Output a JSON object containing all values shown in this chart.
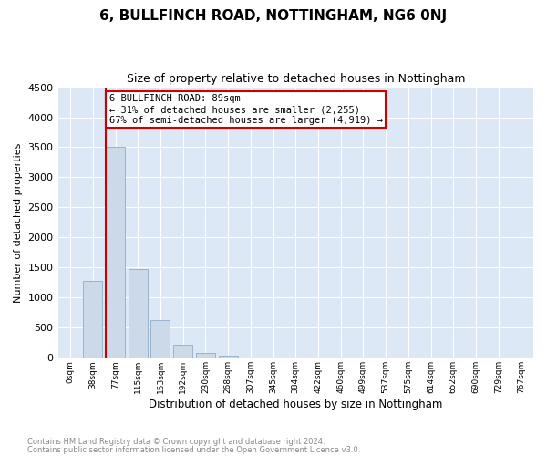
{
  "title": "6, BULLFINCH ROAD, NOTTINGHAM, NG6 0NJ",
  "subtitle": "Size of property relative to detached houses in Nottingham",
  "xlabel": "Distribution of detached houses by size in Nottingham",
  "ylabel": "Number of detached properties",
  "categories": [
    "0sqm",
    "38sqm",
    "77sqm",
    "115sqm",
    "153sqm",
    "192sqm",
    "230sqm",
    "268sqm",
    "307sqm",
    "345sqm",
    "384sqm",
    "422sqm",
    "460sqm",
    "499sqm",
    "537sqm",
    "575sqm",
    "614sqm",
    "652sqm",
    "690sqm",
    "729sqm",
    "767sqm"
  ],
  "values": [
    0,
    1280,
    3500,
    1470,
    620,
    220,
    75,
    28,
    10,
    5,
    3,
    2,
    1,
    1,
    0,
    0,
    0,
    0,
    0,
    0,
    0
  ],
  "bar_color": "#ccd9e8",
  "bar_edge_color": "#99b3cc",
  "annotation_line1": "6 BULLFINCH ROAD: 89sqm",
  "annotation_line2": "← 31% of detached houses are smaller (2,255)",
  "annotation_line3": "67% of semi-detached houses are larger (4,919) →",
  "vline_color": "#cc0000",
  "annotation_box_edge_color": "#cc0000",
  "vline_x_index": 2,
  "ylim": [
    0,
    4500
  ],
  "footer1": "Contains HM Land Registry data © Crown copyright and database right 2024.",
  "footer2": "Contains public sector information licensed under the Open Government Licence v3.0.",
  "plot_bg_color": "#dce8f5"
}
